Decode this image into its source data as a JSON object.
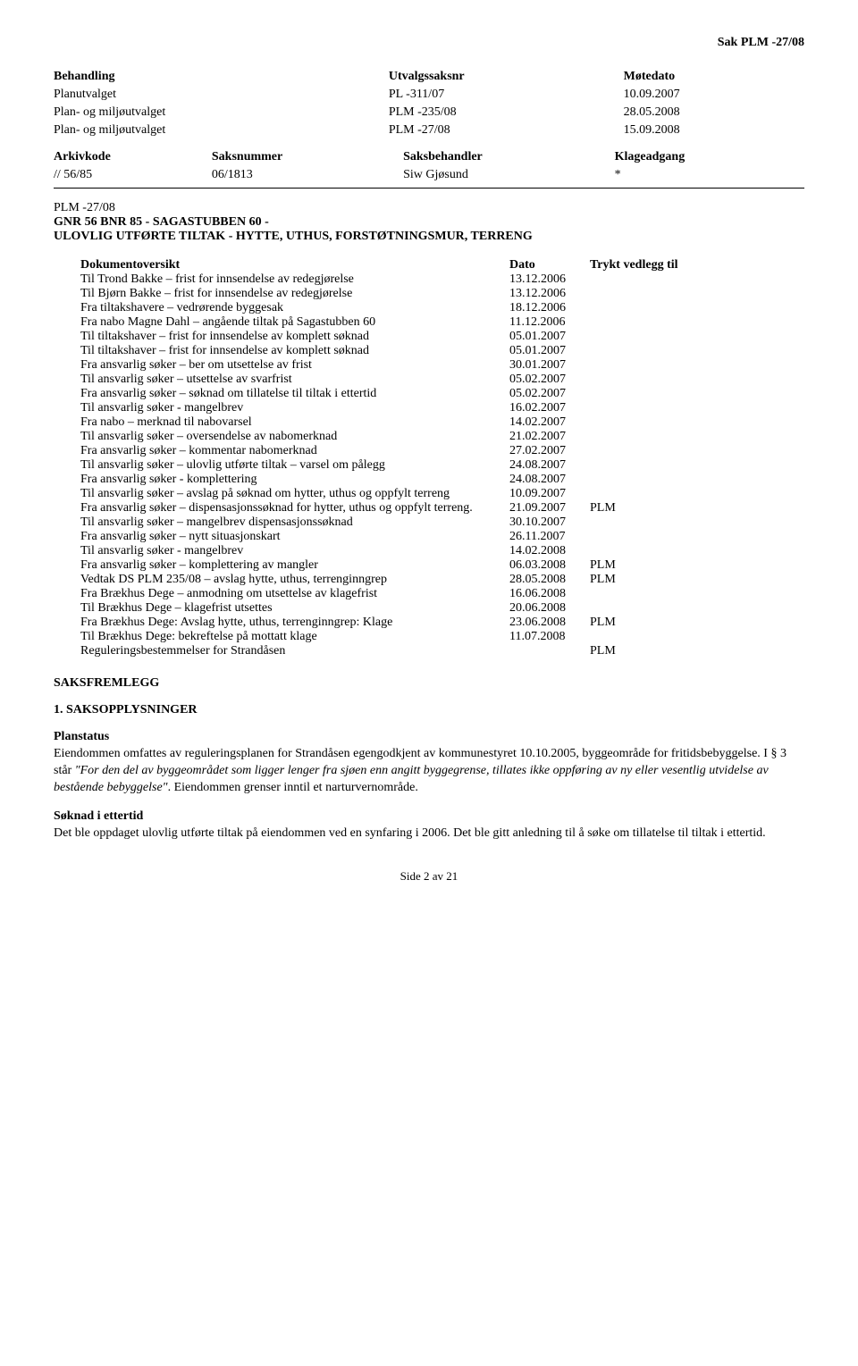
{
  "header": {
    "case_ref": "Sak  PLM -27/08"
  },
  "meeting_table": {
    "headers": {
      "col1": "Behandling",
      "col2": "Utvalgssaksnr",
      "col3": "Møtedato"
    },
    "rows": [
      {
        "body": "Planutvalget",
        "ref": "PL -311/07",
        "date": "10.09.2007"
      },
      {
        "body": "Plan- og miljøutvalget",
        "ref": "PLM -235/08",
        "date": "28.05.2008"
      },
      {
        "body": "Plan- og miljøutvalget",
        "ref": "PLM -27/08",
        "date": "15.09.2008"
      }
    ]
  },
  "archive_table": {
    "headers": {
      "col1": "Arkivkode",
      "col2": "Saksnummer",
      "col3": "Saksbehandler",
      "col4": "Klageadgang"
    },
    "row": {
      "code": "// 56/85",
      "num": "06/1813",
      "handler": "Siw Gjøsund",
      "appeal": "*"
    }
  },
  "case_title": {
    "line1": "PLM -27/08",
    "line2": "GNR 56 BNR 85 - SAGASTUBBEN 60 -",
    "line3": "ULOVLIG UTFØRTE TILTAK - HYTTE, UTHUS, FORSTØTNINGSMUR, TERRENG"
  },
  "doc_list": {
    "headers": {
      "desc": "Dokumentoversikt",
      "date": "Dato",
      "attach": "Trykt vedlegg til"
    },
    "rows": [
      {
        "desc": "Til Trond Bakke – frist for innsendelse av redegjørelse",
        "date": "13.12.2006",
        "attach": ""
      },
      {
        "desc": "Til Bjørn Bakke – frist for innsendelse av redegjørelse",
        "date": "13.12.2006",
        "attach": ""
      },
      {
        "desc": "Fra tiltakshavere – vedrørende byggesak",
        "date": "18.12.2006",
        "attach": ""
      },
      {
        "desc": "Fra nabo Magne Dahl – angående tiltak på Sagastubben 60",
        "date": "11.12.2006",
        "attach": ""
      },
      {
        "desc": "Til tiltakshaver – frist for innsendelse av komplett søknad",
        "date": "05.01.2007",
        "attach": ""
      },
      {
        "desc": "Til tiltakshaver – frist for innsendelse av komplett søknad",
        "date": "05.01.2007",
        "attach": ""
      },
      {
        "desc": "Fra ansvarlig søker – ber om utsettelse av frist",
        "date": "30.01.2007",
        "attach": ""
      },
      {
        "desc": "Til ansvarlig søker – utsettelse av svarfrist",
        "date": "05.02.2007",
        "attach": ""
      },
      {
        "desc": "Fra ansvarlig søker – søknad om tillatelse til tiltak i ettertid",
        "date": "05.02.2007",
        "attach": ""
      },
      {
        "desc": "Til ansvarlig søker - mangelbrev",
        "date": "16.02.2007",
        "attach": ""
      },
      {
        "desc": "Fra nabo – merknad til nabovarsel",
        "date": "14.02.2007",
        "attach": ""
      },
      {
        "desc": "Til ansvarlig søker – oversendelse av nabomerknad",
        "date": "21.02.2007",
        "attach": ""
      },
      {
        "desc": "Fra ansvarlig søker – kommentar nabomerknad",
        "date": "27.02.2007",
        "attach": ""
      },
      {
        "desc": "Til ansvarlig søker – ulovlig utførte tiltak – varsel om pålegg",
        "date": "24.08.2007",
        "attach": ""
      },
      {
        "desc": "Fra ansvarlig søker - komplettering",
        "date": "24.08.2007",
        "attach": ""
      },
      {
        "desc": "Til ansvarlig søker – avslag på søknad om hytter, uthus og oppfylt terreng",
        "date": "10.09.2007",
        "attach": ""
      },
      {
        "desc": "Fra ansvarlig søker – dispensasjonssøknad for hytter, uthus og oppfylt terreng.",
        "date": "21.09.2007",
        "attach": "PLM"
      },
      {
        "desc": "Til ansvarlig søker – mangelbrev dispensasjonssøknad",
        "date": "30.10.2007",
        "attach": ""
      },
      {
        "desc": "Fra ansvarlig søker – nytt situasjonskart",
        "date": "26.11.2007",
        "attach": ""
      },
      {
        "desc": "Til ansvarlig søker - mangelbrev",
        "date": "14.02.2008",
        "attach": ""
      },
      {
        "desc": "Fra ansvarlig søker – komplettering av mangler",
        "date": "06.03.2008",
        "attach": "PLM"
      },
      {
        "desc": "Vedtak DS PLM 235/08 – avslag hytte, uthus, terrenginngrep",
        "date": "28.05.2008",
        "attach": "PLM"
      },
      {
        "desc": "Fra Brækhus Dege – anmodning om utsettelse av klagefrist",
        "date": "16.06.2008",
        "attach": ""
      },
      {
        "desc": "Til Brækhus Dege – klagefrist utsettes",
        "date": "20.06.2008",
        "attach": ""
      },
      {
        "desc": "Fra Brækhus Dege: Avslag hytte, uthus, terrenginngrep: Klage",
        "date": "23.06.2008",
        "attach": "PLM"
      },
      {
        "desc": "Til Brækhus Dege: bekreftelse på mottatt klage",
        "date": "11.07.2008",
        "attach": ""
      },
      {
        "desc": "Reguleringsbestemmelser for Strandåsen",
        "date": "",
        "attach": "PLM"
      }
    ]
  },
  "sections": {
    "saksfremlegg": "SAKSFREMLEGG",
    "saksopplysninger": "1. SAKSOPPLYSNINGER",
    "planstatus_heading": "Planstatus",
    "planstatus_text_pre": "Eiendommen omfattes av reguleringsplanen for Strandåsen egengodkjent av kommunestyret 10.10.2005, byggeområde for fritidsbebyggelse. I § 3 står ",
    "planstatus_quote": "\"For den del av byggeområdet som ligger lenger fra sjøen enn angitt byggegrense, tillates ikke oppføring av ny eller vesentlig utvidelse av bestående bebyggelse\"",
    "planstatus_text_post": ". Eiendommen grenser inntil et narturvernområde.",
    "soknad_heading": "Søknad i ettertid",
    "soknad_text": "Det ble oppdaget ulovlig utførte tiltak på eiendommen ved en synfaring i 2006. Det ble gitt anledning til å søke om tillatelse til tiltak i ettertid."
  },
  "footer": {
    "page": "Side 2 av 21"
  }
}
